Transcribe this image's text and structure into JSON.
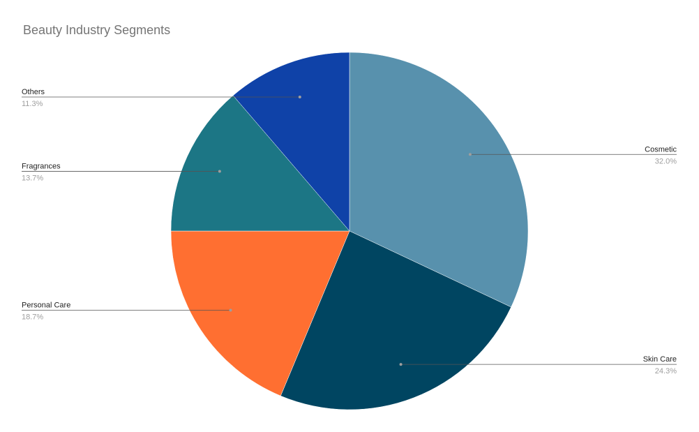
{
  "chart_data": {
    "type": "pie",
    "title": "Beauty Industry Segments",
    "start_angle_deg": 0,
    "direction": "clockwise",
    "slices": [
      {
        "name": "Cosmetic",
        "value": 32.0,
        "label": "32.0%",
        "color": "#5891ad",
        "label_side": "right"
      },
      {
        "name": "Skin Care",
        "value": 24.3,
        "label": "24.3%",
        "color": "#004561",
        "label_side": "right"
      },
      {
        "name": "Personal Care",
        "value": 18.7,
        "label": "18.7%",
        "color": "#ff6f31",
        "label_side": "left"
      },
      {
        "name": "Fragrances",
        "value": 13.7,
        "label": "13.7%",
        "color": "#1c7685",
        "label_side": "left"
      },
      {
        "name": "Others",
        "value": 11.3,
        "label": "11.3%",
        "color": "#0f42a8",
        "label_side": "left"
      }
    ]
  }
}
